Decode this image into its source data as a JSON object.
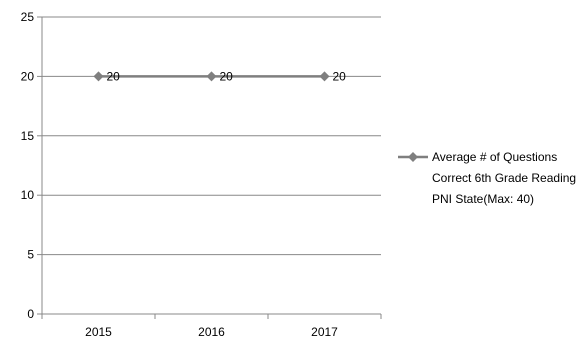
{
  "chart_data": {
    "type": "line",
    "title": "",
    "xlabel": "",
    "ylabel": "",
    "categories": [
      "2015",
      "2016",
      "2017"
    ],
    "series": [
      {
        "name": "Average # of Questions Correct 6th Grade Reading PNI State(Max: 40)",
        "legend_lines": [
          "Average # of Questions",
          "Correct 6th Grade Reading",
          "PNI State(Max: 40)"
        ],
        "values": [
          20,
          20,
          20
        ],
        "data_labels": [
          "20",
          "20",
          "20"
        ],
        "color": "#7f7f7f",
        "marker": "diamond"
      }
    ],
    "ylim": [
      0,
      25
    ],
    "yticks": [
      "0",
      "5",
      "10",
      "15",
      "20",
      "25"
    ],
    "grid": true,
    "legend_position": "right"
  }
}
